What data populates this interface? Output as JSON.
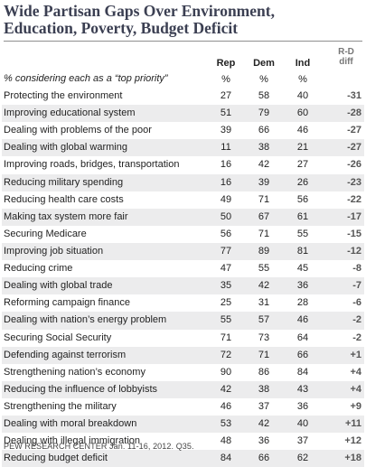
{
  "title_line1": "Wide Partisan Gaps Over Environment,",
  "title_line2": "Education, Poverty, Budget Deficit",
  "subhead": "% considering each as a “top priority”",
  "columns": {
    "rep": "Rep",
    "dem": "Dem",
    "ind": "Ind",
    "diff_line1": "R-D",
    "diff_line2": "diff",
    "pct": "%"
  },
  "footer": "PEW RESEARCH CENTER Jan. 11-16, 2012. Q35.",
  "chart_data": {
    "type": "table",
    "rows": [
      {
        "label": "Protecting the environment",
        "rep": 27,
        "dem": 58,
        "ind": 40,
        "diff": "-31"
      },
      {
        "label": "Improving educational system",
        "rep": 51,
        "dem": 79,
        "ind": 60,
        "diff": "-28"
      },
      {
        "label": "Dealing with problems of the poor",
        "rep": 39,
        "dem": 66,
        "ind": 46,
        "diff": "-27"
      },
      {
        "label": "Dealing with global warming",
        "rep": 11,
        "dem": 38,
        "ind": 21,
        "diff": "-27"
      },
      {
        "label": "Improving roads, bridges, transportation",
        "rep": 16,
        "dem": 42,
        "ind": 27,
        "diff": "-26"
      },
      {
        "label": "Reducing military spending",
        "rep": 16,
        "dem": 39,
        "ind": 26,
        "diff": "-23"
      },
      {
        "label": "Reducing health care costs",
        "rep": 49,
        "dem": 71,
        "ind": 56,
        "diff": "-22"
      },
      {
        "label": "Making tax system more fair",
        "rep": 50,
        "dem": 67,
        "ind": 61,
        "diff": "-17"
      },
      {
        "label": "Securing Medicare",
        "rep": 56,
        "dem": 71,
        "ind": 55,
        "diff": "-15"
      },
      {
        "label": "Improving job situation",
        "rep": 77,
        "dem": 89,
        "ind": 81,
        "diff": "-12"
      },
      {
        "label": "Reducing crime",
        "rep": 47,
        "dem": 55,
        "ind": 45,
        "diff": "-8"
      },
      {
        "label": "Dealing with global trade",
        "rep": 35,
        "dem": 42,
        "ind": 36,
        "diff": "-7"
      },
      {
        "label": "Reforming campaign finance",
        "rep": 25,
        "dem": 31,
        "ind": 28,
        "diff": "-6"
      },
      {
        "label": "Dealing with nation’s energy problem",
        "rep": 55,
        "dem": 57,
        "ind": 46,
        "diff": "-2"
      },
      {
        "label": "Securing Social Security",
        "rep": 71,
        "dem": 73,
        "ind": 64,
        "diff": "-2"
      },
      {
        "label": "Defending against terrorism",
        "rep": 72,
        "dem": 71,
        "ind": 66,
        "diff": "+1"
      },
      {
        "label": "Strengthening nation’s economy",
        "rep": 90,
        "dem": 86,
        "ind": 84,
        "diff": "+4"
      },
      {
        "label": "Reducing the influence of lobbyists",
        "rep": 42,
        "dem": 38,
        "ind": 43,
        "diff": "+4"
      },
      {
        "label": "Strengthening the military",
        "rep": 46,
        "dem": 37,
        "ind": 36,
        "diff": "+9"
      },
      {
        "label": "Dealing with moral breakdown",
        "rep": 53,
        "dem": 42,
        "ind": 40,
        "diff": "+11"
      },
      {
        "label": "Dealing with illegal immigration",
        "rep": 48,
        "dem": 36,
        "ind": 37,
        "diff": "+12"
      },
      {
        "label": "Reducing budget deficit",
        "rep": 84,
        "dem": 66,
        "ind": 62,
        "diff": "+18"
      }
    ]
  }
}
